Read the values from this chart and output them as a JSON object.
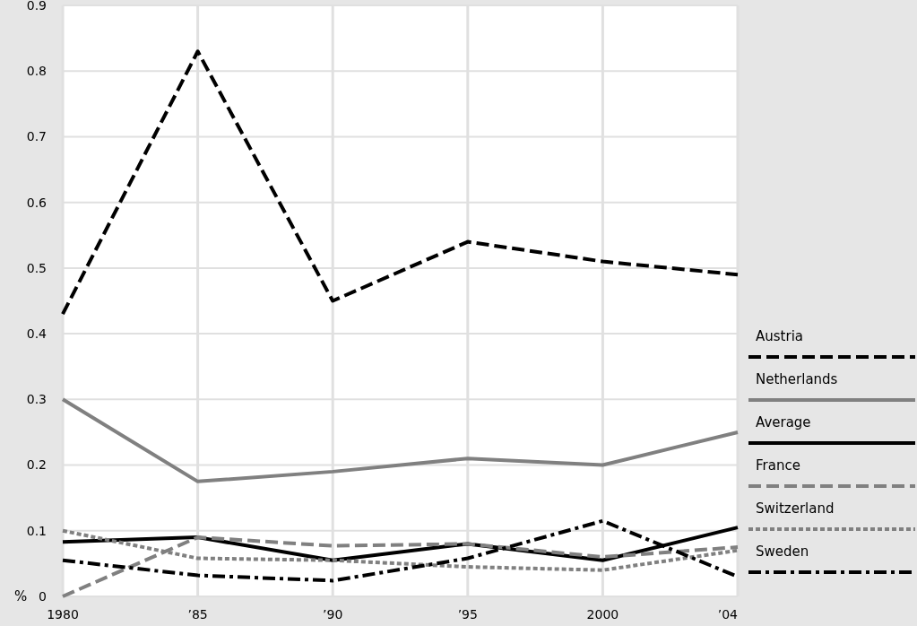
{
  "chart_data": {
    "type": "line",
    "ylabel": "%",
    "categories": [
      "1980",
      "’85",
      "’90",
      "’95",
      "2000",
      "’04"
    ],
    "ylim": [
      0,
      0.9
    ],
    "yticks": [
      0,
      0.1,
      0.2,
      0.3,
      0.4,
      0.5,
      0.6,
      0.7,
      0.8,
      0.9
    ],
    "grid": true,
    "legend": "right",
    "series": [
      {
        "name": "Austria",
        "color": "#000000",
        "line_style": "dashed",
        "values": [
          0.43,
          0.83,
          0.45,
          0.54,
          0.51,
          0.49
        ]
      },
      {
        "name": "Netherlands",
        "color": "#808080",
        "line_style": "solid",
        "values": [
          0.3,
          0.175,
          0.19,
          0.21,
          0.2,
          0.25
        ]
      },
      {
        "name": "Average",
        "color": "#000000",
        "line_style": "solid",
        "values": [
          0.083,
          0.09,
          0.055,
          0.08,
          0.055,
          0.105
        ]
      },
      {
        "name": "France",
        "color": "#808080",
        "line_style": "dashed",
        "values": [
          0,
          0.09,
          0.077,
          0.08,
          0.06,
          0.075
        ]
      },
      {
        "name": "Switzerland",
        "color": "#808080",
        "line_style": "dotted",
        "values": [
          0.1,
          0.058,
          0.055,
          0.045,
          0.04,
          0.07
        ]
      },
      {
        "name": "Sweden",
        "color": "#000000",
        "line_style": "dashdot",
        "values": [
          0.055,
          0.032,
          0.024,
          0.058,
          0.115,
          0.03
        ]
      }
    ]
  }
}
